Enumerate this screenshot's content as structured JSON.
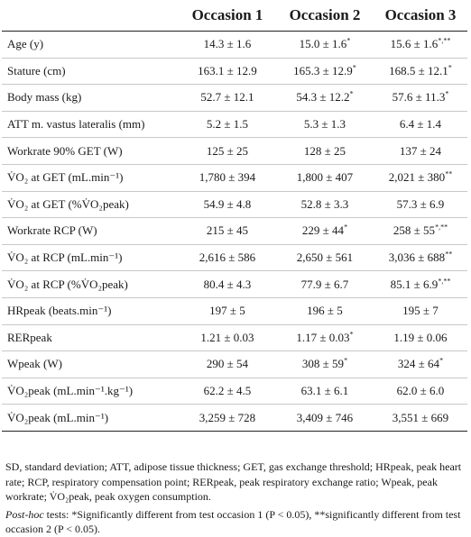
{
  "columns": [
    "",
    "Occasion 1",
    "Occasion 2",
    "Occasion 3"
  ],
  "rows": [
    {
      "label": "Age (y)",
      "o1": "14.3 ± 1.6",
      "o1_sup": "",
      "o2": "15.0 ± 1.6",
      "o2_sup": "*",
      "o3": "15.6 ± 1.6",
      "o3_sup": "*,**"
    },
    {
      "label": "Stature (cm)",
      "o1": "163.1 ± 12.9",
      "o1_sup": "",
      "o2": "165.3 ± 12.9",
      "o2_sup": "*",
      "o3": "168.5 ± 12.1",
      "o3_sup": "*"
    },
    {
      "label": "Body mass (kg)",
      "o1": "52.7 ± 12.1",
      "o1_sup": "",
      "o2": "54.3 ± 12.2",
      "o2_sup": "*",
      "o3": "57.6 ± 11.3",
      "o3_sup": "*"
    },
    {
      "label": "ATT m. vastus lateralis (mm)",
      "o1": "5.2 ± 1.5",
      "o1_sup": "",
      "o2": "5.3 ± 1.3",
      "o2_sup": "",
      "o3": "6.4 ± 1.4",
      "o3_sup": ""
    },
    {
      "label": "Workrate 90% GET (W)",
      "o1": "125 ± 25",
      "o1_sup": "",
      "o2": "128 ± 25",
      "o2_sup": "",
      "o3": "137 ± 24",
      "o3_sup": ""
    },
    {
      "label": "V̇O₂ at GET (mL.min⁻¹)",
      "o1": "1,780 ± 394",
      "o1_sup": "",
      "o2": "1,800 ± 407",
      "o2_sup": "",
      "o3": "2,021 ± 380",
      "o3_sup": "**"
    },
    {
      "label": "V̇O₂ at GET (%V̇O₂peak)",
      "o1": "54.9 ± 4.8",
      "o1_sup": "",
      "o2": "52.8 ± 3.3",
      "o2_sup": "",
      "o3": "57.3 ± 6.9",
      "o3_sup": ""
    },
    {
      "label": "Workrate RCP (W)",
      "o1": "215 ± 45",
      "o1_sup": "",
      "o2": "229 ± 44",
      "o2_sup": "*",
      "o3": "258 ± 55",
      "o3_sup": "*,**"
    },
    {
      "label": "V̇O₂ at RCP (mL.min⁻¹)",
      "o1": "2,616 ± 586",
      "o1_sup": "",
      "o2": "2,650 ± 561",
      "o2_sup": "",
      "o3": "3,036 ± 688",
      "o3_sup": "**"
    },
    {
      "label": "V̇O₂ at RCP (%V̇O₂peak)",
      "o1": "80.4 ± 4.3",
      "o1_sup": "",
      "o2": "77.9 ± 6.7",
      "o2_sup": "",
      "o3": "85.1 ± 6.9",
      "o3_sup": "*,**"
    },
    {
      "label": "HRpeak (beats.min⁻¹)",
      "o1": "197 ± 5",
      "o1_sup": "",
      "o2": "196 ± 5",
      "o2_sup": "",
      "o3": "195 ± 7",
      "o3_sup": ""
    },
    {
      "label": "RERpeak",
      "o1": "1.21 ± 0.03",
      "o1_sup": "",
      "o2": "1.17 ± 0.03",
      "o2_sup": "*",
      "o3": "1.19 ± 0.06",
      "o3_sup": ""
    },
    {
      "label": "Wpeak (W)",
      "o1": "290 ± 54",
      "o1_sup": "",
      "o2": "308 ± 59",
      "o2_sup": "*",
      "o3": "324 ± 64",
      "o3_sup": "*"
    },
    {
      "label": "V̇O₂peak (mL.min⁻¹.kg⁻¹)",
      "o1": "62.2 ± 4.5",
      "o1_sup": "",
      "o2": "63.1 ± 6.1",
      "o2_sup": "",
      "o3": "62.0 ± 6.0",
      "o3_sup": ""
    },
    {
      "label": "V̇O₂peak (mL.min⁻¹)",
      "o1": "3,259 ± 728",
      "o1_sup": "",
      "o2": "3,409 ± 746",
      "o2_sup": "",
      "o3": "3,551 ± 669",
      "o3_sup": ""
    }
  ],
  "footnotes": {
    "abbreviations": "SD, standard deviation; ATT, adipose tissue thickness; GET, gas exchange threshold; HRpeak, peak heart rate; RCP, respiratory compensation point; RERpeak, peak respiratory exchange ratio; Wpeak, peak workrate; V̇O₂peak, peak oxygen consumption.",
    "posthoc_label": "Post-hoc",
    "posthoc_text": " tests: *Significantly different from test occasion 1 (P < 0.05), **significantly different from test occasion 2 (P < 0.05)."
  }
}
